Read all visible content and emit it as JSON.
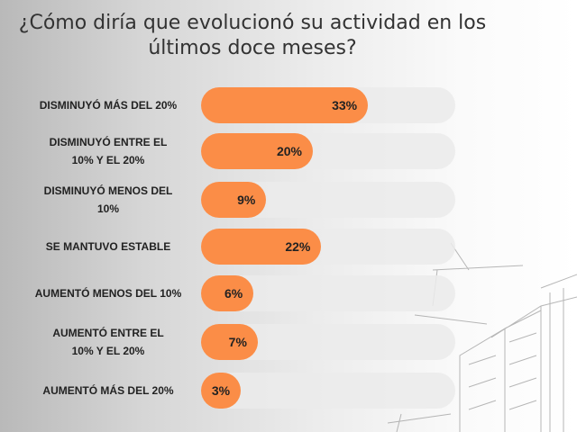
{
  "chart_data": {
    "type": "bar",
    "orientation": "horizontal",
    "title": "¿Cómo diría que evolucionó su actividad en los últimos doce meses?",
    "categories": [
      "DISMINUYÓ MÁS DEL 20%",
      "DISMINUYÓ ENTRE EL 10% Y EL 20%",
      "DISMINUYÓ MENOS DEL 10%",
      "SE MANTUVO ESTABLE",
      "AUMENTÓ MENOS DEL 10%",
      "AUMENTÓ ENTRE EL 10% Y EL 20%",
      "AUMENTÓ MÁS DEL 20%"
    ],
    "values": [
      33,
      20,
      9,
      22,
      6,
      7,
      3
    ],
    "data_labels": [
      "33%",
      "20%",
      "9%",
      "22%",
      "6%",
      "7%",
      "3%"
    ],
    "colors": {
      "bar": "#fb8d47",
      "track": "#ebebeb"
    },
    "grid": false
  }
}
